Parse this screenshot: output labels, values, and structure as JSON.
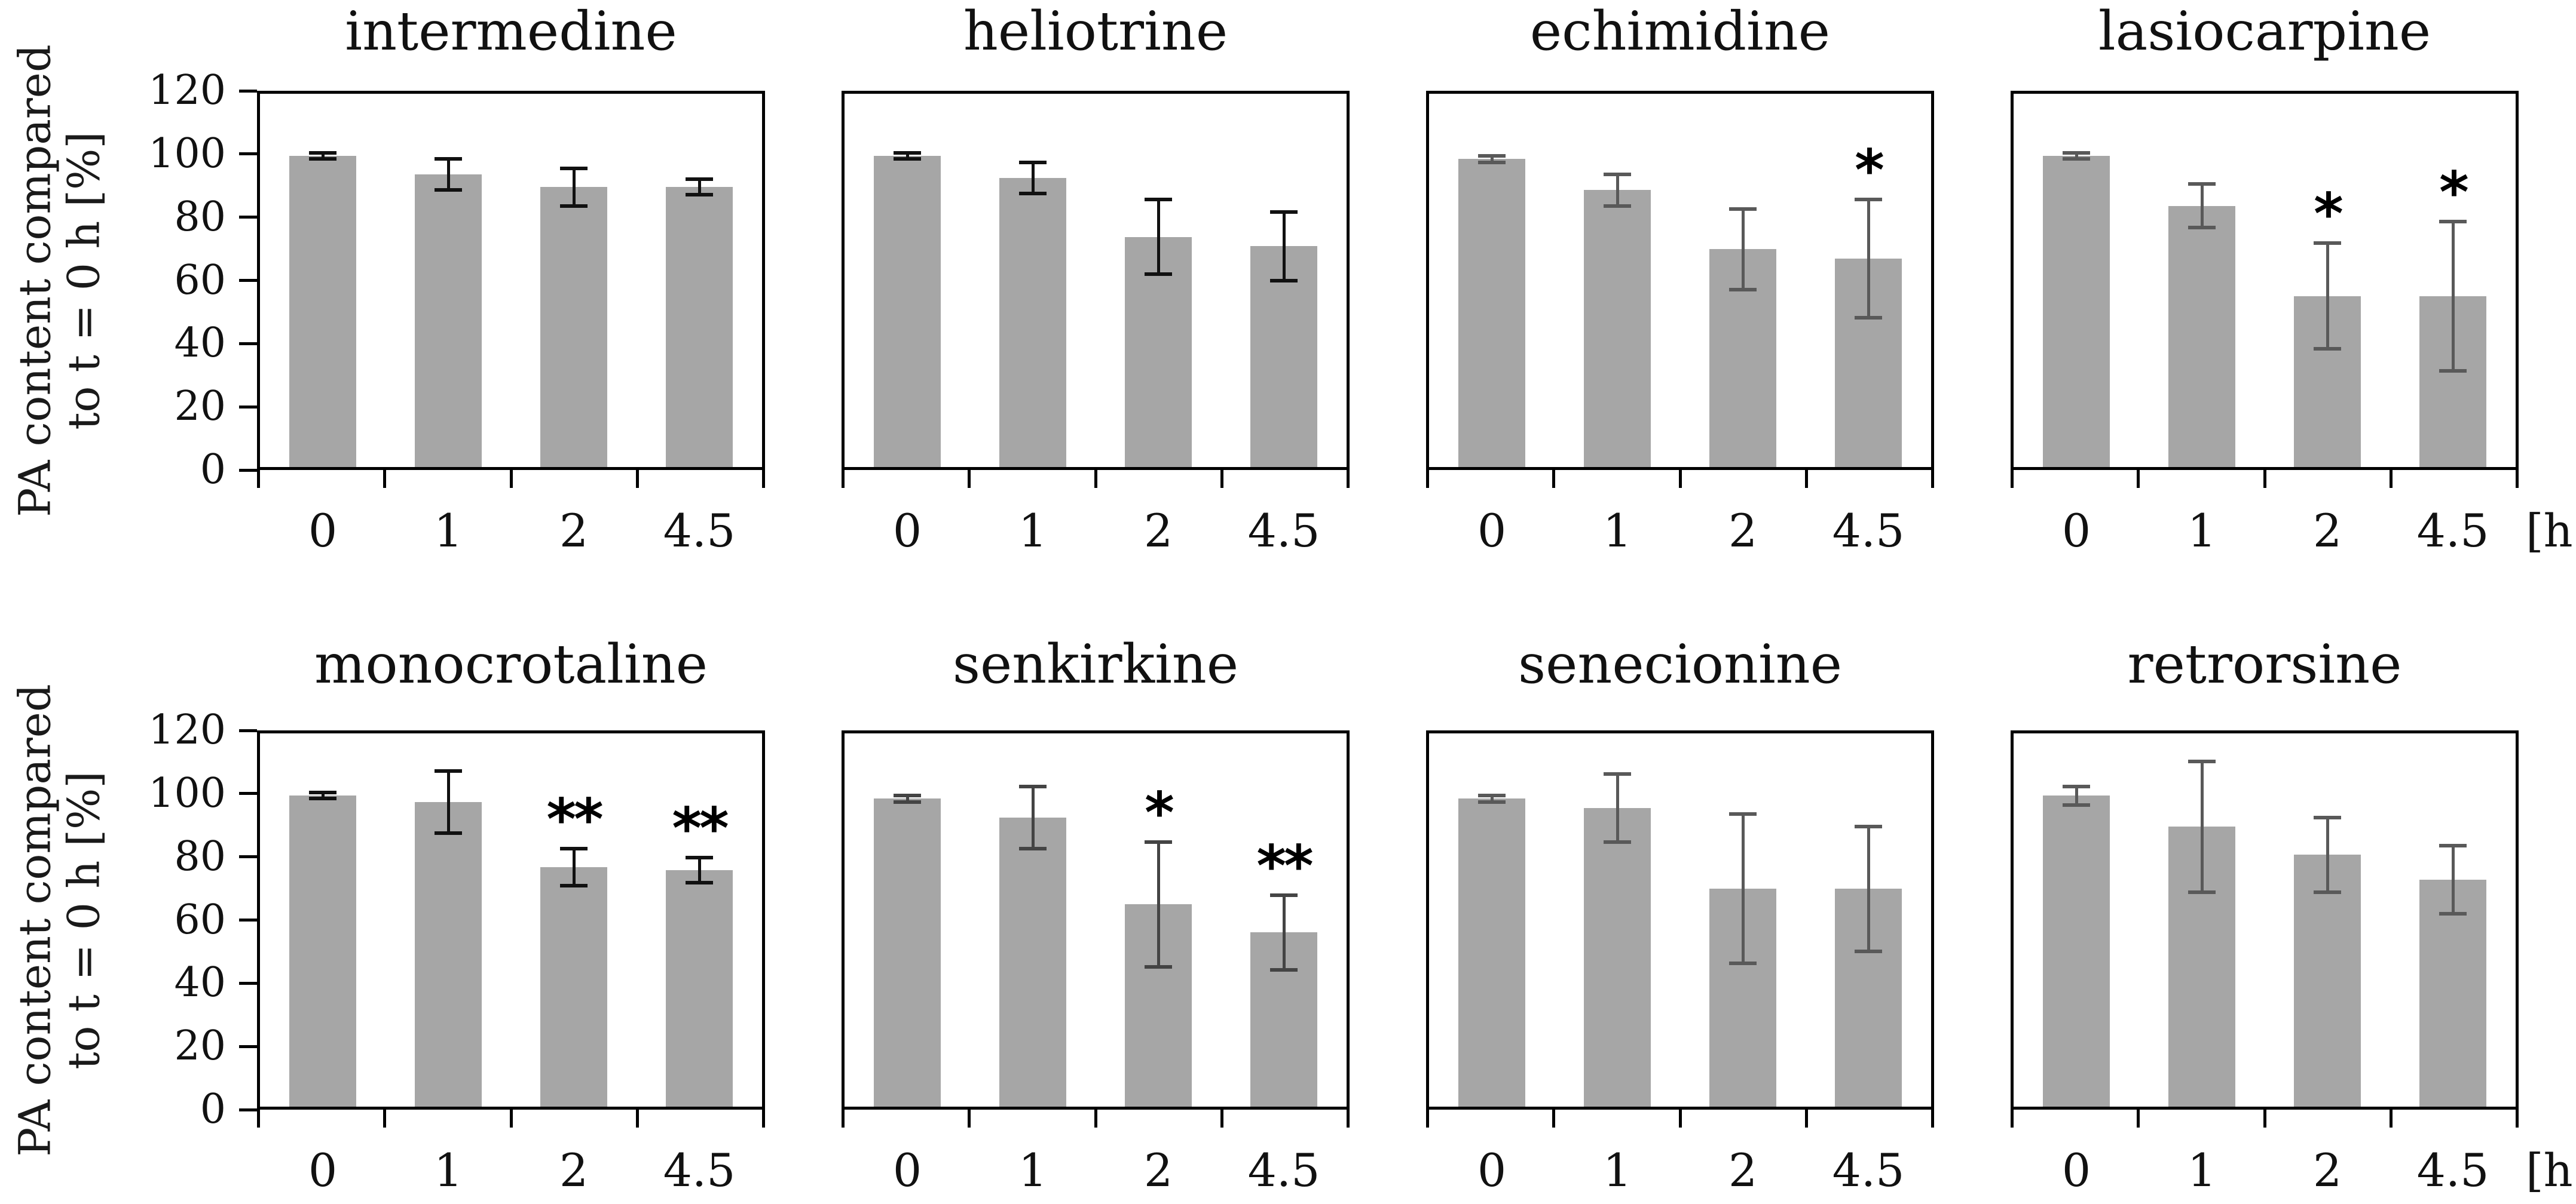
{
  "figure": {
    "background": "#ffffff",
    "bar_color": "#a6a6a6",
    "box_border_color": "#000000",
    "x_unit_label": "[h]",
    "y_axis_label_line1": "PA content compared",
    "y_axis_label_line2": "to t = 0 h [%]"
  },
  "chart_data": {
    "type": "bar",
    "categories": [
      "0",
      "1",
      "2",
      "4.5"
    ],
    "xlabel": "[h]",
    "ylabel": "PA content compared to t = 0 h [%]",
    "ylim": [
      0,
      120
    ],
    "yticks": [
      0,
      20,
      40,
      60,
      80,
      100,
      120
    ],
    "grid": "off",
    "legend": "none",
    "layout_rows": [
      [
        0,
        1,
        2,
        3
      ],
      [
        4,
        5,
        6,
        7
      ]
    ],
    "charts": [
      {
        "title": "intermedine",
        "values": [
          100,
          94,
          90,
          90
        ],
        "errors": [
          1,
          5,
          6,
          2.5
        ],
        "significance": [
          "",
          "",
          "",
          ""
        ],
        "error_bar_color": "#111111"
      },
      {
        "title": "heliotrine",
        "values": [
          100,
          93,
          74,
          71
        ],
        "errors": [
          1,
          5,
          12,
          11
        ],
        "significance": [
          "",
          "",
          "",
          ""
        ],
        "error_bar_color": "#111111"
      },
      {
        "title": "echimidine",
        "values": [
          99,
          89,
          70,
          67
        ],
        "errors": [
          1,
          5,
          13,
          19
        ],
        "significance": [
          "",
          "",
          "",
          "*"
        ],
        "error_bar_color": "#595959"
      },
      {
        "title": "lasiocarpine",
        "values": [
          100,
          84,
          55,
          55
        ],
        "errors": [
          1,
          7,
          17,
          24
        ],
        "significance": [
          "",
          "",
          "*",
          "*"
        ],
        "error_bar_color": "#595959"
      },
      {
        "title": "monocrotaline",
        "values": [
          100,
          98,
          77,
          76
        ],
        "errors": [
          1,
          10,
          6,
          4
        ],
        "significance": [
          "",
          "",
          "**",
          "**"
        ],
        "error_bar_color": "#111111"
      },
      {
        "title": "senkirkine",
        "values": [
          99,
          93,
          65,
          56
        ],
        "errors": [
          1,
          10,
          20,
          12
        ],
        "significance": [
          "",
          "",
          "*",
          "**"
        ],
        "error_bar_color": "#444444"
      },
      {
        "title": "senecionine",
        "values": [
          99,
          96,
          70,
          70
        ],
        "errors": [
          1,
          11,
          24,
          20
        ],
        "significance": [
          "",
          "",
          "",
          ""
        ],
        "error_bar_color": "#595959"
      },
      {
        "title": "retrorsine",
        "values": [
          100,
          90,
          81,
          73
        ],
        "errors": [
          3,
          21,
          12,
          11
        ],
        "significance": [
          "",
          "",
          "",
          ""
        ],
        "error_bar_color": "#595959"
      }
    ]
  }
}
